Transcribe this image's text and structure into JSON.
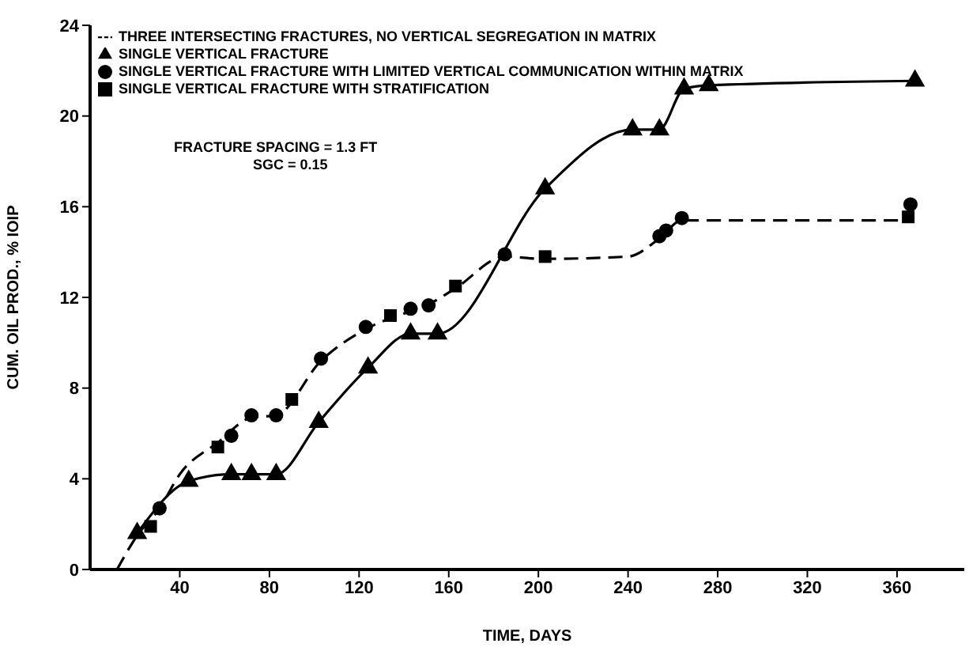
{
  "chart_data": {
    "type": "line",
    "xlabel": "TIME, DAYS",
    "ylabel": "CUM. OIL PROD., % IOIP",
    "xlim": [
      0,
      390
    ],
    "xticks": [
      40,
      80,
      120,
      160,
      200,
      240,
      280,
      320,
      360
    ],
    "ylim": [
      0,
      24
    ],
    "yticks": [
      0,
      4,
      8,
      12,
      16,
      20,
      24
    ],
    "grid": false,
    "legend": "top left",
    "annotations": [
      "FRACTURE SPACING = 1.3 FT",
      "SGC = 0.15"
    ],
    "series": [
      {
        "name": "THREE INTERSECTING FRACTURES, NO VERTICAL SEGREGATION IN MATRIX",
        "color": "#000000",
        "line_style": "dashed",
        "marker": "none",
        "x": [
          12,
          21,
          31,
          40,
          57,
          72,
          83,
          103,
          123,
          143,
          151,
          163,
          185,
          202,
          240,
          254,
          264,
          290,
          366
        ],
        "values": [
          0,
          1.5,
          2.7,
          4.2,
          5.6,
          6.7,
          6.8,
          9.2,
          10.6,
          11.4,
          11.7,
          12.4,
          13.8,
          13.7,
          13.8,
          14.6,
          15.4,
          15.4,
          15.4
        ]
      },
      {
        "name": "SINGLE VERTICAL FRACTURE",
        "color": "#000000",
        "line_style": "solid",
        "marker": "triangle",
        "x": [
          21,
          44,
          63,
          72,
          83,
          102,
          124,
          143,
          155,
          203,
          242,
          254,
          265,
          276,
          368
        ],
        "values": [
          1.6,
          3.9,
          4.2,
          4.2,
          4.2,
          6.5,
          8.9,
          10.4,
          10.4,
          16.8,
          19.4,
          19.4,
          21.2,
          21.35,
          21.55
        ]
      },
      {
        "name": "SINGLE VERTICAL FRACTURE WITH LIMITED VERTICAL COMMUNICATION WITHIN MATRIX",
        "type": "scatter",
        "color": "#000000",
        "marker": "circle",
        "x": [
          31,
          63,
          72,
          83,
          103,
          123,
          143,
          151,
          185,
          254,
          257,
          264,
          366
        ],
        "values": [
          2.7,
          5.9,
          6.8,
          6.8,
          9.3,
          10.7,
          11.5,
          11.65,
          13.9,
          14.7,
          14.95,
          15.5,
          16.1
        ]
      },
      {
        "name": "SINGLE VERTICAL FRACTURE WITH STRATIFICATION",
        "type": "scatter",
        "color": "#000000",
        "marker": "square",
        "x": [
          27,
          57,
          90,
          134,
          163,
          203,
          365
        ],
        "values": [
          1.9,
          5.4,
          7.5,
          11.2,
          12.5,
          13.8,
          15.55
        ]
      }
    ]
  }
}
